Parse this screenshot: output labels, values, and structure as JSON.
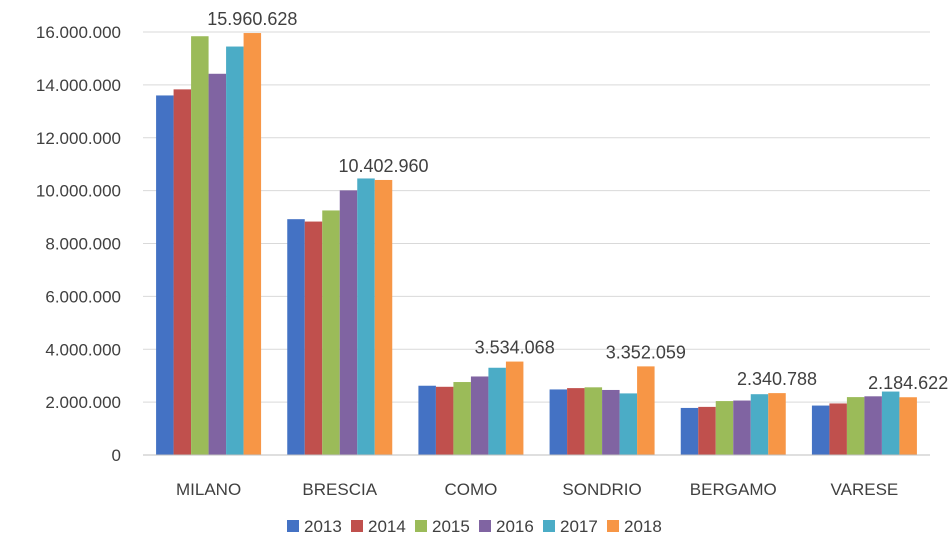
{
  "chart_data": {
    "type": "bar",
    "title": "",
    "xlabel": "",
    "ylabel": "",
    "categories": [
      "MILANO",
      "BRESCIA",
      "COMO",
      "SONDRIO",
      "BERGAMO",
      "VARESE"
    ],
    "series": [
      {
        "name": "2013",
        "color": "#4472C4",
        "values": [
          13600000,
          8920000,
          2620000,
          2480000,
          1780000,
          1870000
        ]
      },
      {
        "name": "2014",
        "color": "#C0504D",
        "values": [
          13830000,
          8830000,
          2580000,
          2530000,
          1820000,
          1950000
        ]
      },
      {
        "name": "2015",
        "color": "#9BBB59",
        "values": [
          15840000,
          9250000,
          2760000,
          2560000,
          2040000,
          2190000
        ]
      },
      {
        "name": "2016",
        "color": "#8064A2",
        "values": [
          14420000,
          10010000,
          2970000,
          2460000,
          2060000,
          2220000
        ]
      },
      {
        "name": "2017",
        "color": "#4BACC6",
        "values": [
          15450000,
          10460000,
          3300000,
          2330000,
          2300000,
          2400000
        ]
      },
      {
        "name": "2018",
        "color": "#F79646",
        "values": [
          15960628,
          10402960,
          3534068,
          3352059,
          2340788,
          2184622
        ]
      }
    ],
    "data_labels": [
      "15.960.628",
      "10.402.960",
      "3.534.068",
      "3.352.059",
      "2.340.788",
      "2.184.622"
    ],
    "yticks": [
      0,
      2000000,
      4000000,
      6000000,
      8000000,
      10000000,
      12000000,
      14000000,
      16000000
    ],
    "ytick_labels": [
      "0",
      "2.000.000",
      "4.000.000",
      "6.000.000",
      "8.000.000",
      "10.000.000",
      "12.000.000",
      "14.000.000",
      "16.000.000"
    ],
    "ylim": [
      0,
      16000000
    ],
    "grid": true,
    "legend": "bottom"
  }
}
